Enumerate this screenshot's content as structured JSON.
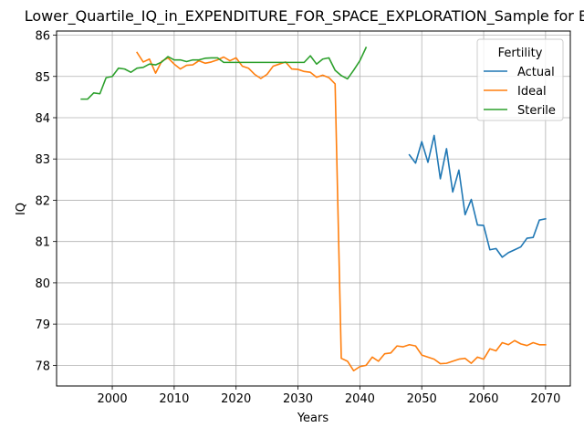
{
  "chart_data": {
    "type": "line",
    "title": "Lower_Quartile_IQ_in_EXPENDITURE_FOR_SPACE_EXPLORATION_Sample for Black",
    "xlabel": "Years",
    "ylabel": "IQ",
    "xlim": [
      1991,
      2074
    ],
    "ylim": [
      77.5,
      86.1
    ],
    "xticks": [
      2000,
      2010,
      2020,
      2030,
      2040,
      2050,
      2060,
      2070
    ],
    "yticks": [
      78,
      79,
      80,
      81,
      82,
      83,
      84,
      85,
      86
    ],
    "grid": true,
    "legend": {
      "title": "Fertility",
      "position": "top-right"
    },
    "series": [
      {
        "name": "Actual",
        "color": "#1f77b4",
        "x": [
          2048,
          2049,
          2050,
          2051,
          2052,
          2053,
          2054,
          2055,
          2056,
          2057,
          2058,
          2059,
          2060,
          2061,
          2062,
          2063,
          2064,
          2065,
          2066,
          2067,
          2068,
          2069,
          2070
        ],
        "y": [
          83.1,
          82.9,
          83.42,
          82.92,
          83.57,
          82.52,
          83.25,
          82.2,
          82.73,
          81.65,
          82.02,
          81.4,
          81.39,
          80.8,
          80.83,
          80.62,
          80.73,
          80.8,
          80.87,
          81.08,
          81.1,
          81.52,
          81.55
        ]
      },
      {
        "name": "Ideal",
        "color": "#ff7f0e",
        "x": [
          2004,
          2005,
          2006,
          2007,
          2008,
          2009,
          2010,
          2011,
          2012,
          2013,
          2014,
          2015,
          2016,
          2017,
          2018,
          2019,
          2020,
          2021,
          2022,
          2023,
          2024,
          2025,
          2026,
          2027,
          2028,
          2029,
          2030,
          2031,
          2032,
          2033,
          2034,
          2035,
          2036,
          2037,
          2038,
          2039,
          2040,
          2041,
          2042,
          2043,
          2044,
          2045,
          2046,
          2047,
          2048,
          2049,
          2050,
          2051,
          2052,
          2053,
          2054,
          2055,
          2056,
          2057,
          2058,
          2059,
          2060,
          2061,
          2062,
          2063,
          2064,
          2065,
          2066,
          2067,
          2068,
          2069,
          2070
        ],
        "y": [
          85.58,
          85.35,
          85.42,
          85.08,
          85.37,
          85.45,
          85.3,
          85.18,
          85.27,
          85.28,
          85.38,
          85.32,
          85.35,
          85.4,
          85.47,
          85.38,
          85.45,
          85.25,
          85.2,
          85.05,
          84.95,
          85.05,
          85.25,
          85.3,
          85.35,
          85.18,
          85.17,
          85.12,
          85.1,
          84.98,
          85.03,
          84.97,
          84.82,
          78.17,
          78.1,
          77.87,
          77.97,
          78.0,
          78.2,
          78.1,
          78.28,
          78.3,
          78.47,
          78.45,
          78.5,
          78.47,
          78.25,
          78.2,
          78.15,
          78.04,
          78.05,
          78.1,
          78.15,
          78.17,
          78.05,
          78.2,
          78.15,
          78.4,
          78.35,
          78.55,
          78.5,
          78.6,
          78.52,
          78.48,
          78.55,
          78.5,
          78.5
        ]
      },
      {
        "name": "Sterile",
        "color": "#2ca02c",
        "x": [
          1995,
          1996,
          1997,
          1998,
          1999,
          2000,
          2001,
          2002,
          2003,
          2004,
          2005,
          2006,
          2007,
          2008,
          2009,
          2010,
          2011,
          2012,
          2013,
          2014,
          2015,
          2016,
          2017,
          2018,
          2019,
          2020,
          2021,
          2022,
          2023,
          2024,
          2025,
          2026,
          2027,
          2028,
          2029,
          2030,
          2031,
          2032,
          2033,
          2034,
          2035,
          2036,
          2037,
          2038,
          2039,
          2040,
          2041
        ],
        "y": [
          84.45,
          84.45,
          84.6,
          84.58,
          84.97,
          85.0,
          85.2,
          85.18,
          85.1,
          85.2,
          85.22,
          85.3,
          85.28,
          85.35,
          85.48,
          85.4,
          85.4,
          85.36,
          85.4,
          85.4,
          85.44,
          85.45,
          85.45,
          85.34,
          85.34,
          85.34,
          85.34,
          85.34,
          85.34,
          85.34,
          85.34,
          85.34,
          85.34,
          85.34,
          85.34,
          85.34,
          85.34,
          85.5,
          85.3,
          85.42,
          85.45,
          85.15,
          85.02,
          84.94,
          85.15,
          85.38,
          85.7
        ]
      }
    ]
  }
}
